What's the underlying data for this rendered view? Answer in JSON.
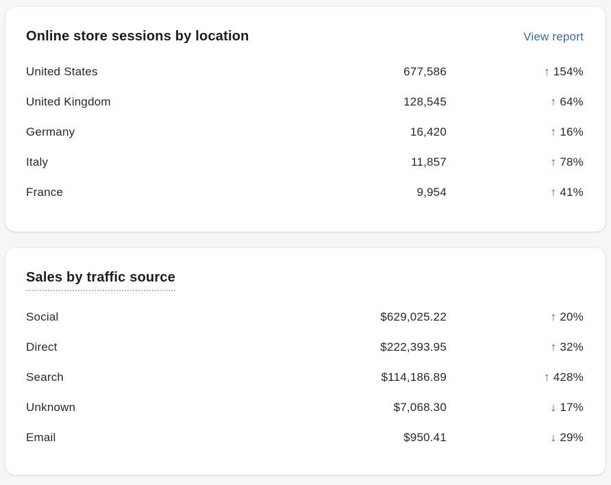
{
  "colors": {
    "positive": "#2a7b5f",
    "negative": "#b43d22",
    "link": "#3e6aaf",
    "background": "#f6f6f7",
    "card": "#ffffff",
    "text": "#26282a"
  },
  "cards": [
    {
      "title": "Online store sessions by location",
      "action_label": "View report",
      "rows": [
        {
          "label": "United States",
          "value": "677,586",
          "direction": "up",
          "delta": "154%"
        },
        {
          "label": "United Kingdom",
          "value": "128,545",
          "direction": "up",
          "delta": "64%"
        },
        {
          "label": "Germany",
          "value": "16,420",
          "direction": "up",
          "delta": "16%"
        },
        {
          "label": "Italy",
          "value": "11,857",
          "direction": "up",
          "delta": "78%"
        },
        {
          "label": "France",
          "value": "9,954",
          "direction": "up",
          "delta": "41%"
        }
      ]
    },
    {
      "title": "Sales by traffic source",
      "rows": [
        {
          "label": "Social",
          "value": "$629,025.22",
          "direction": "up",
          "delta": "20%"
        },
        {
          "label": "Direct",
          "value": "$222,393.95",
          "direction": "up",
          "delta": "32%"
        },
        {
          "label": "Search",
          "value": "$114,186.89",
          "direction": "up",
          "delta": "428%"
        },
        {
          "label": "Unknown",
          "value": "$7,068.30",
          "direction": "down",
          "delta": "17%"
        },
        {
          "label": "Email",
          "value": "$950.41",
          "direction": "down",
          "delta": "29%"
        }
      ]
    }
  ]
}
